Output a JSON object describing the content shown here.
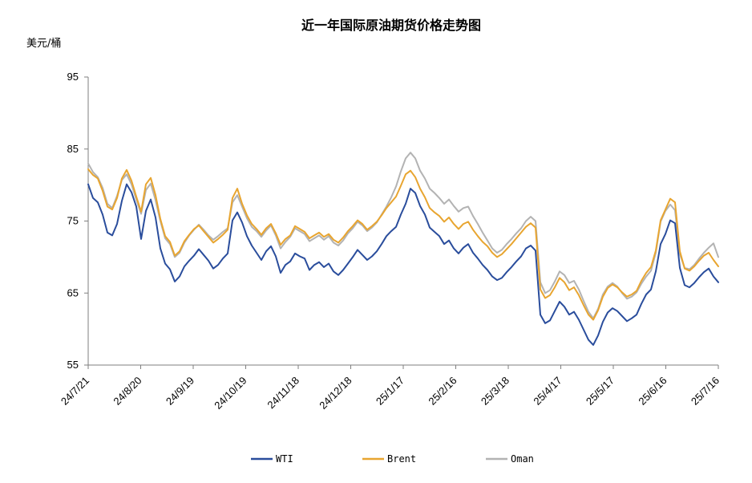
{
  "chart_data": {
    "type": "line",
    "title": "近一年国际原油期货价格走势图",
    "ylabel": "美元/桶",
    "xlabel": "",
    "ylim": [
      55,
      95
    ],
    "yticks": [
      55,
      65,
      75,
      85,
      95
    ],
    "xtick_labels": [
      "24/7/21",
      "24/8/20",
      "24/9/19",
      "24/10/19",
      "24/11/18",
      "24/12/18",
      "25/1/17",
      "25/2/16",
      "25/3/18",
      "25/4/17",
      "25/5/17",
      "25/6/16",
      "25/7/16"
    ],
    "grid": false,
    "legend_position": "bottom",
    "series": [
      {
        "name": "WTI",
        "color": "#2a4d9c",
        "values": [
          80.1,
          78.2,
          77.6,
          75.9,
          73.4,
          73.0,
          74.6,
          77.8,
          80.1,
          79.0,
          77.0,
          72.5,
          76.4,
          78.0,
          75.5,
          71.2,
          69.1,
          68.3,
          66.6,
          67.3,
          68.7,
          69.5,
          70.2,
          71.1,
          70.3,
          69.5,
          68.4,
          68.9,
          69.8,
          70.5,
          75.1,
          76.2,
          74.8,
          72.9,
          71.6,
          70.6,
          69.6,
          70.8,
          71.5,
          70.1,
          67.8,
          68.9,
          69.4,
          70.5,
          70.1,
          69.8,
          68.2,
          68.9,
          69.3,
          68.6,
          69.1,
          68.0,
          67.5,
          68.2,
          69.1,
          70.0,
          71.0,
          70.3,
          69.6,
          70.1,
          70.8,
          71.8,
          72.9,
          73.6,
          74.2,
          75.9,
          77.4,
          79.5,
          78.9,
          77.1,
          75.9,
          74.1,
          73.5,
          72.9,
          71.8,
          72.3,
          71.2,
          70.5,
          71.3,
          71.8,
          70.6,
          69.8,
          68.9,
          68.2,
          67.3,
          66.8,
          67.1,
          67.9,
          68.6,
          69.4,
          70.1,
          71.2,
          71.6,
          70.9,
          62.0,
          60.8,
          61.2,
          62.5,
          63.8,
          63.1,
          62.0,
          62.4,
          61.3,
          59.9,
          58.5,
          57.8,
          59.1,
          61.0,
          62.3,
          62.9,
          62.5,
          61.8,
          61.1,
          61.5,
          62.0,
          63.5,
          64.8,
          65.5,
          68.0,
          71.8,
          73.2,
          75.1,
          74.7,
          68.5,
          66.1,
          65.8,
          66.4,
          67.2,
          67.9,
          68.4,
          67.3,
          66.5
        ]
      },
      {
        "name": "Brent",
        "color": "#e8a530",
        "values": [
          82.2,
          81.4,
          80.9,
          79.2,
          77.0,
          76.6,
          78.2,
          80.9,
          82.1,
          80.6,
          78.4,
          76.3,
          80.1,
          81.0,
          78.6,
          75.3,
          72.9,
          72.1,
          70.2,
          70.8,
          72.2,
          73.1,
          73.9,
          74.4,
          73.6,
          72.8,
          72.0,
          72.5,
          73.1,
          73.8,
          78.2,
          79.5,
          77.4,
          75.8,
          74.6,
          73.9,
          73.1,
          74.0,
          74.6,
          73.3,
          71.7,
          72.5,
          73.0,
          74.3,
          73.9,
          73.5,
          72.6,
          73.0,
          73.4,
          72.8,
          73.2,
          72.4,
          72.0,
          72.7,
          73.6,
          74.3,
          75.1,
          74.6,
          73.8,
          74.3,
          74.9,
          75.8,
          76.8,
          77.6,
          78.4,
          79.9,
          81.5,
          82.0,
          81.1,
          79.5,
          78.3,
          76.8,
          76.2,
          75.7,
          74.9,
          75.5,
          74.6,
          73.9,
          74.6,
          74.9,
          73.8,
          72.9,
          72.1,
          71.5,
          70.6,
          70.0,
          70.4,
          71.1,
          71.8,
          72.6,
          73.4,
          74.2,
          74.7,
          74.1,
          65.5,
          64.3,
          64.7,
          65.8,
          67.1,
          66.5,
          65.4,
          65.8,
          64.7,
          63.3,
          62.0,
          61.3,
          62.6,
          64.5,
          65.7,
          66.2,
          65.8,
          65.1,
          64.5,
          64.8,
          65.3,
          66.7,
          67.8,
          68.6,
          70.9,
          75.1,
          76.6,
          78.1,
          77.6,
          70.8,
          68.4,
          68.1,
          68.7,
          69.5,
          70.2,
          70.6,
          69.6,
          68.7
        ]
      },
      {
        "name": "Oman",
        "color": "#b3b3b3",
        "values": [
          83.0,
          81.8,
          81.1,
          79.6,
          77.4,
          76.8,
          78.5,
          80.7,
          81.5,
          80.1,
          78.0,
          76.0,
          79.3,
          80.2,
          77.9,
          75.0,
          72.6,
          71.8,
          70.0,
          70.6,
          72.0,
          73.0,
          73.8,
          74.5,
          73.8,
          73.0,
          72.4,
          72.9,
          73.5,
          74.0,
          77.6,
          78.6,
          77.0,
          75.4,
          74.2,
          73.6,
          72.8,
          73.7,
          74.4,
          73.0,
          71.2,
          72.1,
          72.8,
          74.0,
          73.6,
          73.2,
          72.2,
          72.6,
          73.0,
          72.4,
          72.9,
          72.0,
          71.6,
          72.3,
          73.3,
          74.0,
          74.9,
          74.4,
          73.6,
          74.1,
          74.8,
          75.9,
          77.0,
          78.3,
          79.8,
          81.9,
          83.7,
          84.5,
          83.7,
          82.0,
          80.9,
          79.5,
          78.9,
          78.2,
          77.4,
          78.0,
          77.1,
          76.3,
          76.8,
          77.0,
          75.7,
          74.6,
          73.4,
          72.3,
          71.2,
          70.6,
          71.0,
          71.8,
          72.5,
          73.3,
          74.0,
          75.0,
          75.6,
          75.0,
          66.5,
          65.0,
          65.4,
          66.6,
          68.0,
          67.5,
          66.4,
          66.7,
          65.5,
          63.9,
          62.4,
          61.5,
          62.8,
          64.8,
          65.9,
          66.4,
          65.9,
          65.0,
          64.2,
          64.5,
          65.1,
          66.3,
          67.3,
          68.1,
          70.6,
          74.9,
          76.4,
          77.3,
          76.5,
          70.4,
          68.5,
          68.3,
          68.9,
          69.8,
          70.6,
          71.3,
          71.9,
          70.0
        ]
      }
    ]
  }
}
